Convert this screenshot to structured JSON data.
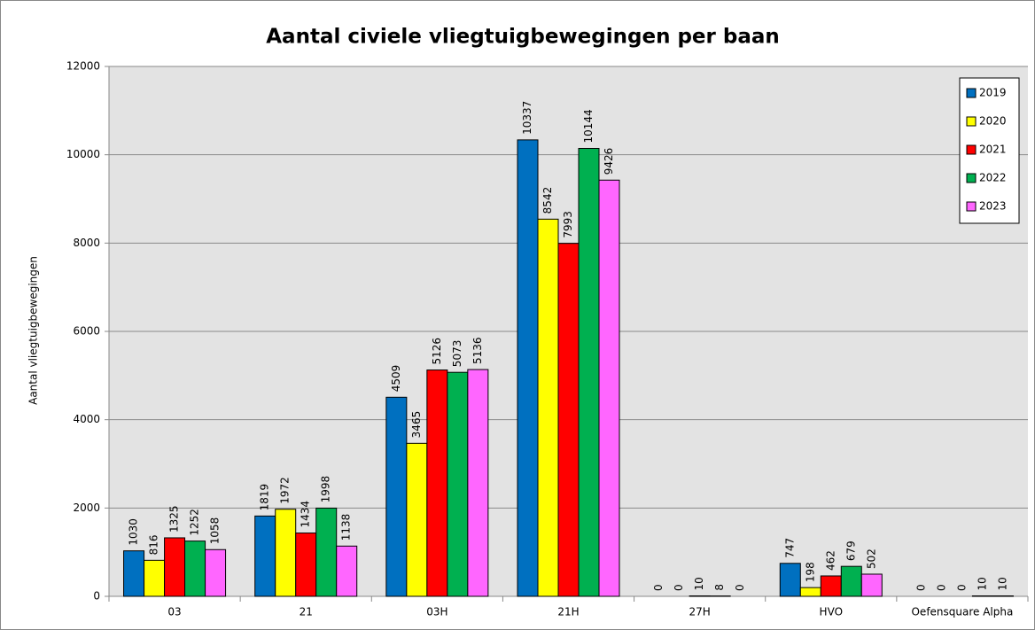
{
  "chart_data": {
    "type": "bar",
    "title": "Aantal civiele vliegtuigbewegingen per baan",
    "y_label": "Aantal vliegtuigbewegingen",
    "categories": [
      "03",
      "21",
      "03H",
      "21H",
      "27H",
      "HVO",
      "Oefensquare Alpha"
    ],
    "series": [
      {
        "name": "2019",
        "color": "#0070c0",
        "values": [
          1030,
          1819,
          4509,
          10337,
          0,
          747,
          0
        ]
      },
      {
        "name": "2020",
        "color": "#ffff00",
        "values": [
          816,
          1972,
          3465,
          8542,
          0,
          198,
          0
        ]
      },
      {
        "name": "2021",
        "color": "#ff0000",
        "values": [
          1325,
          1434,
          5126,
          7993,
          10,
          462,
          0
        ]
      },
      {
        "name": "2022",
        "color": "#00b050",
        "values": [
          1252,
          1998,
          5073,
          10144,
          8,
          679,
          10
        ]
      },
      {
        "name": "2023",
        "color": "#ff66ff",
        "values": [
          1058,
          1138,
          5136,
          9426,
          0,
          502,
          10
        ]
      }
    ],
    "ylim": [
      0,
      12000
    ],
    "yticks": [
      0,
      2000,
      4000,
      6000,
      8000,
      10000,
      12000
    ],
    "grid": true,
    "legend": "upper right"
  }
}
